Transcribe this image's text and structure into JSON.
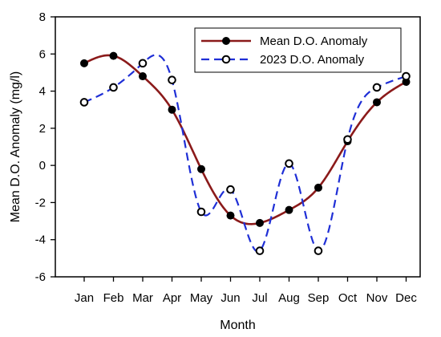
{
  "chart_data": {
    "type": "line",
    "xlabel": "Month",
    "ylabel": "Mean D.O. Anomaly (mg/l)",
    "categories": [
      "Jan",
      "Feb",
      "Mar",
      "Apr",
      "May",
      "Jun",
      "Jul",
      "Aug",
      "Sep",
      "Oct",
      "Nov",
      "Dec"
    ],
    "ylim": [
      -6,
      8
    ],
    "yticks": [
      -6,
      -4,
      -2,
      0,
      2,
      4,
      6,
      8
    ],
    "grid": false,
    "legend_position": "top-right",
    "series": [
      {
        "name": "Mean D.O. Anomaly",
        "color": "#8b1a1a",
        "marker": "filled-circle",
        "line_style": "solid",
        "values": [
          5.5,
          5.9,
          4.8,
          3.0,
          -0.2,
          -2.7,
          -3.1,
          -2.4,
          -1.2,
          1.3,
          3.4,
          4.5
        ]
      },
      {
        "name": "2023 D.O. Anomaly",
        "color": "#1f2fd6",
        "marker": "open-circle",
        "line_style": "dashed",
        "values": [
          3.4,
          4.2,
          5.5,
          4.6,
          -2.5,
          -1.3,
          -4.6,
          0.1,
          -4.6,
          1.4,
          4.2,
          4.8
        ]
      }
    ]
  }
}
